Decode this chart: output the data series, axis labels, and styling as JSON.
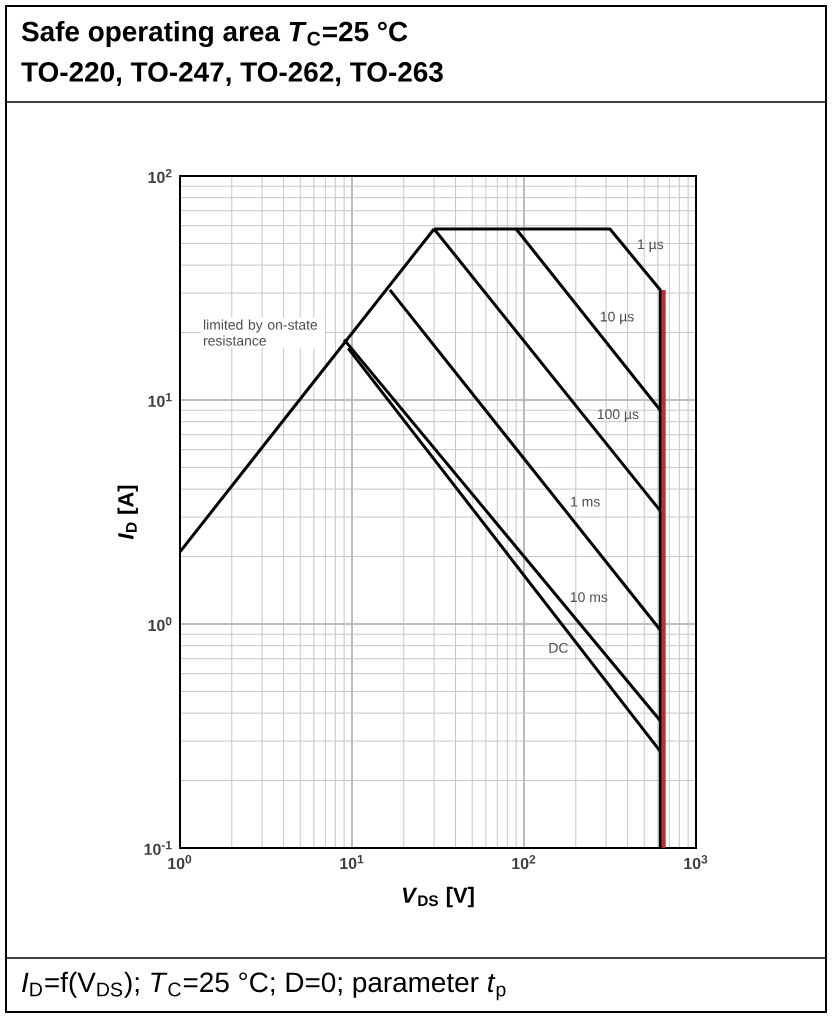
{
  "chart_data": {
    "type": "line",
    "title": "Safe operating area *T*$_{C}$=25 °C",
    "subtitle": "TO-220, TO-247, TO-262, TO-263",
    "xlabel": "*V*$_{DS}$ [V]",
    "ylabel": "*I*$_{D}$ [A]",
    "annotations": [
      "limited by on-state resistance",
      "*I*$_{D}$=f(V$_{DS}$); *T*$_{C}$=25 °C; D=0; parameter *t*$_{p}$"
    ],
    "log": "xy",
    "grid": true,
    "xlim": [
      1,
      1000
    ],
    "ylim": [
      0.1,
      100
    ],
    "xticks": [
      {
        "value": 1,
        "label": "10$^{0}$"
      },
      {
        "value": 10,
        "label": "10$^{1}$"
      },
      {
        "value": 100,
        "label": "10$^{2}$"
      },
      {
        "value": 1000,
        "label": "10$^{3}$"
      }
    ],
    "yticks": [
      {
        "value": 0.1,
        "label": "10$^{-1}$"
      },
      {
        "value": 1,
        "label": "10$^{0}$"
      },
      {
        "value": 10,
        "label": "10$^{1}$"
      },
      {
        "value": 100,
        "label": "10$^{2}$"
      }
    ],
    "series": [
      {
        "color": "#000000",
        "x": [
          1,
          30
        ],
        "values": [
          2.1,
          58
        ]
      },
      {
        "name": "1 µs",
        "color": "#000000",
        "x": [
          30,
          316,
          620,
          620
        ],
        "values": [
          58,
          58,
          31,
          0.1
        ]
      },
      {
        "name": "10 µs",
        "color": "#000000",
        "x": [
          90,
          620
        ],
        "values": [
          58,
          9.0
        ]
      },
      {
        "name": "100 µs",
        "color": "#000000",
        "x": [
          30,
          620
        ],
        "values": [
          58,
          3.2
        ]
      },
      {
        "name": "1 ms",
        "color": "#000000",
        "x": [
          16.6,
          620
        ],
        "values": [
          31,
          0.94
        ]
      },
      {
        "name": "10 ms",
        "color": "#000000",
        "x": [
          9,
          620
        ],
        "values": [
          18.6,
          0.37
        ]
      },
      {
        "name": "DC",
        "color": "#000000",
        "x": [
          9.5,
          620
        ],
        "values": [
          17,
          0.27
        ]
      },
      {
        "color": "#c62828",
        "x": [
          650,
          650
        ],
        "values": [
          31,
          0.1
        ]
      }
    ]
  }
}
